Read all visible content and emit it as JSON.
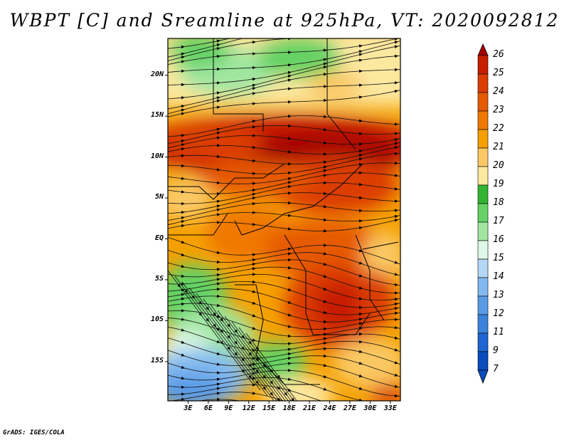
{
  "title": "WBPT [C] and Sreamline at 925hPa, VT: 2020092812",
  "credit": "GrADS: IGES/COLA",
  "map": {
    "lat_labels": [
      "20N",
      "15N",
      "10N",
      "5N",
      "EQ",
      "5S",
      "10S",
      "15S"
    ],
    "lon_labels": [
      "3E",
      "6E",
      "9E",
      "12E",
      "15E",
      "18E",
      "21E",
      "24E",
      "27E",
      "30E",
      "33E"
    ],
    "lat_values": [
      20,
      15,
      10,
      5,
      0,
      -5,
      -10,
      -15
    ],
    "lon_values": [
      3,
      6,
      9,
      12,
      15,
      18,
      21,
      24,
      27,
      30,
      33
    ],
    "lat_range": [
      -19.8,
      24.5
    ],
    "lon_range": [
      0,
      34.5
    ]
  },
  "colorbar": {
    "labels": [
      "26",
      "25",
      "24",
      "23",
      "22",
      "21",
      "20",
      "19",
      "18",
      "17",
      "16",
      "15",
      "14",
      "13",
      "12",
      "11",
      "9",
      "7"
    ],
    "colors": [
      "#a50000",
      "#c81e00",
      "#dc3c00",
      "#e65a00",
      "#f07800",
      "#f5a000",
      "#fac864",
      "#fde8a0",
      "#32b432",
      "#64d264",
      "#a0e6a0",
      "#e0f8e8",
      "#b4d7f5",
      "#82b9f0",
      "#5a9be6",
      "#3c82dc",
      "#1e64d2",
      "#0a4bbe"
    ],
    "top_arrow_color": "#a50000",
    "bottom_arrow_color": "#0a4bbe"
  }
}
